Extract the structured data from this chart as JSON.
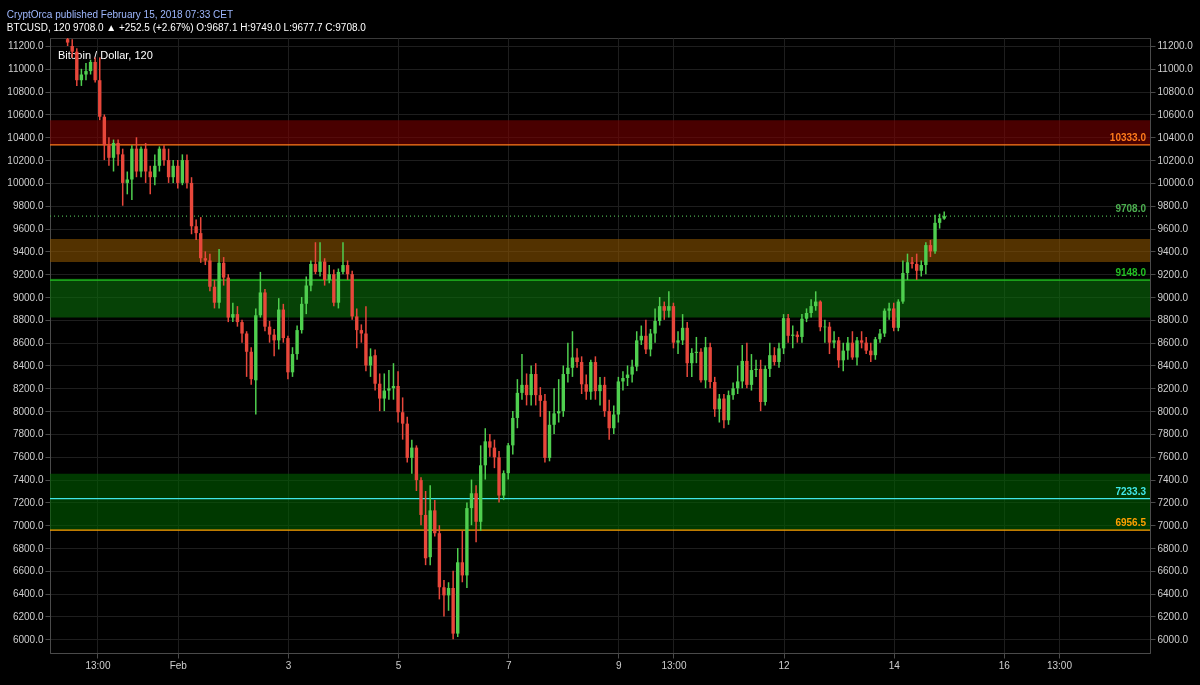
{
  "chart_data": {
    "type": "candlestick",
    "title": "CryptOrca published February 15, 2018 07:33 CET",
    "subtitle": "BTCUSD, 120  9708.0 ▲ +252.5 (+2.67%) O:9687.1 H:9749.0 L:9677.7 C:9708.0",
    "annotations": [
      "Bitcoin / Dollar, 120"
    ],
    "colors": [
      "#e8473b",
      "#e8473b",
      "#e8473b",
      "#4fcf4f",
      "#4fcf4f",
      "#4fcf4f",
      "#e8473b",
      "#e8473b",
      "#e8473b",
      "#e8473b",
      "#4fcf4f",
      "#e8473b",
      "#e8473b",
      "#4fcf4f",
      "#4fcf4f",
      "#e8473b",
      "#4fcf4f",
      "#e8473b",
      "#e8473b",
      "#4fcf4f",
      "#4fcf4f",
      "#e8473b",
      "#e8473b",
      "#4fcf4f",
      "#e8473b",
      "#4fcf4f",
      "#e8473b",
      "#e8473b",
      "#e8473b",
      "#e8473b",
      "#e8473b",
      "#e8473b",
      "#e8473b",
      "#4fcf4f",
      "#e8473b",
      "#e8473b",
      "#4fcf4f",
      "#e8473b",
      "#e8473b",
      "#e8473b",
      "#e8473b",
      "#4fcf4f",
      "#4fcf4f",
      "#e8473b",
      "#e8473b",
      "#e8473b",
      "#4fcf4f",
      "#e8473b",
      "#e8473b",
      "#4fcf4f",
      "#4fcf4f",
      "#4fcf4f",
      "#4fcf4f",
      "#4fcf4f",
      "#e8473b",
      "#4fcf4f",
      "#e8473b",
      "#4fcf4f",
      "#e8473b",
      "#4fcf4f",
      "#4fcf4f",
      "#e8473b",
      "#e8473b",
      "#e8473b",
      "#e8473b",
      "#e8473b",
      "#4fcf4f",
      "#e8473b",
      "#e8473b",
      "#4fcf4f",
      "#4fcf4f",
      "#4fcf4f",
      "#e8473b",
      "#e8473b",
      "#e8473b",
      "#4fcf4f",
      "#e8473b",
      "#e8473b",
      "#e8473b",
      "#4fcf4f",
      "#e8473b",
      "#e8473b",
      "#e8473b",
      "#4fcf4f",
      "#e8473b",
      "#4fcf4f",
      "#e8473b",
      "#4fcf4f",
      "#4fcf4f",
      "#e8473b",
      "#4fcf4f",
      "#4fcf4f",
      "#e8473b",
      "#e8473b",
      "#e8473b",
      "#4fcf4f",
      "#4fcf4f",
      "#4fcf4f",
      "#4fcf4f",
      "#4fcf4f",
      "#e8473b",
      "#4fcf4f",
      "#e8473b",
      "#e8473b",
      "#e8473b",
      "#4fcf4f",
      "#4fcf4f",
      "#4fcf4f",
      "#4fcf4f",
      "#4fcf4f",
      "#4fcf4f",
      "#e8473b",
      "#e8473b",
      "#e8473b",
      "#4fcf4f",
      "#e8473b",
      "#4fcf4f",
      "#e8473b",
      "#e8473b",
      "#4fcf4f",
      "#4fcf4f",
      "#4fcf4f",
      "#4fcf4f",
      "#4fcf4f",
      "#4fcf4f",
      "#4fcf4f",
      "#e8473b",
      "#4fcf4f",
      "#4fcf4f",
      "#4fcf4f",
      "#e8473b",
      "#4fcf4f",
      "#e8473b",
      "#4fcf4f",
      "#4fcf4f",
      "#e8473b",
      "#4fcf4f",
      "#4fcf4f",
      "#e8473b",
      "#4fcf4f",
      "#e8473b",
      "#e8473b",
      "#4fcf4f",
      "#e8473b",
      "#4fcf4f",
      "#4fcf4f",
      "#4fcf4f",
      "#4fcf4f",
      "#e8473b",
      "#4fcf4f",
      "#4fcf4f",
      "#e8473b",
      "#4fcf4f",
      "#4fcf4f",
      "#e8473b",
      "#4fcf4f",
      "#4fcf4f",
      "#e8473b",
      "#4fcf4f",
      "#e8473b",
      "#4fcf4f",
      "#4fcf4f",
      "#4fcf4f",
      "#4fcf4f",
      "#e8473b",
      "#4fcf4f",
      "#e8473b",
      "#4fcf4f",
      "#e8473b",
      "#4fcf4f",
      "#4fcf4f",
      "#e8473b",
      "#4fcf4f",
      "#e8473b",
      "#e8473b",
      "#e8473b",
      "#4fcf4f",
      "#4fcf4f",
      "#4fcf4f",
      "#4fcf4f",
      "#e8473b",
      "#4fcf4f",
      "#4fcf4f",
      "#4fcf4f",
      "#e8473b",
      "#e8473b",
      "#4fcf4f",
      "#4fcf4f",
      "#e8473b",
      "#4fcf4f",
      "#4fcf4f",
      "#4fcf4f"
    ],
    "x": [
      "2018-01-30T00:00",
      "2018-01-30T02:00",
      "2018-01-30T04:00",
      "2018-01-30T06:00",
      "2018-01-30T08:00",
      "2018-01-30T10:00",
      "2018-01-30T12:00",
      "2018-01-30T14:00",
      "2018-01-30T16:00",
      "2018-01-30T18:00",
      "2018-01-30T20:00",
      "2018-01-30T22:00",
      "2018-01-31T00:00",
      "2018-01-31T02:00",
      "2018-01-31T04:00",
      "2018-01-31T06:00",
      "2018-01-31T08:00",
      "2018-01-31T10:00",
      "2018-01-31T12:00",
      "2018-01-31T14:00",
      "2018-01-31T16:00",
      "2018-01-31T18:00",
      "2018-01-31T20:00",
      "2018-01-31T22:00",
      "2018-02-01T00:00",
      "2018-02-01T02:00",
      "2018-02-01T04:00",
      "2018-02-01T06:00",
      "2018-02-01T08:00",
      "2018-02-01T10:00",
      "2018-02-01T12:00",
      "2018-02-01T14:00",
      "2018-02-01T16:00",
      "2018-02-01T18:00",
      "2018-02-01T20:00",
      "2018-02-01T22:00",
      "2018-02-02T00:00",
      "2018-02-02T02:00",
      "2018-02-02T04:00",
      "2018-02-02T06:00",
      "2018-02-02T08:00",
      "2018-02-02T10:00",
      "2018-02-02T12:00",
      "2018-02-02T14:00",
      "2018-02-02T16:00",
      "2018-02-02T18:00",
      "2018-02-02T20:00",
      "2018-02-02T22:00",
      "2018-02-03T00:00",
      "2018-02-03T02:00",
      "2018-02-03T04:00",
      "2018-02-03T06:00",
      "2018-02-03T08:00",
      "2018-02-03T10:00",
      "2018-02-03T12:00",
      "2018-02-03T14:00",
      "2018-02-03T16:00",
      "2018-02-03T18:00",
      "2018-02-03T20:00",
      "2018-02-03T22:00",
      "2018-02-04T00:00",
      "2018-02-04T02:00",
      "2018-02-04T04:00",
      "2018-02-04T06:00",
      "2018-02-04T08:00",
      "2018-02-04T10:00",
      "2018-02-04T12:00",
      "2018-02-04T14:00",
      "2018-02-04T16:00",
      "2018-02-04T18:00",
      "2018-02-04T20:00",
      "2018-02-04T22:00",
      "2018-02-05T00:00",
      "2018-02-05T02:00",
      "2018-02-05T04:00",
      "2018-02-05T06:00",
      "2018-02-05T08:00",
      "2018-02-05T10:00",
      "2018-02-05T12:00",
      "2018-02-05T14:00",
      "2018-02-05T16:00",
      "2018-02-05T18:00",
      "2018-02-05T20:00",
      "2018-02-05T22:00",
      "2018-02-06T00:00",
      "2018-02-06T02:00",
      "2018-02-06T04:00",
      "2018-02-06T06:00",
      "2018-02-06T08:00",
      "2018-02-06T10:00",
      "2018-02-06T12:00",
      "2018-02-06T14:00",
      "2018-02-06T16:00",
      "2018-02-06T18:00",
      "2018-02-06T20:00",
      "2018-02-06T22:00",
      "2018-02-07T00:00",
      "2018-02-07T02:00",
      "2018-02-07T04:00",
      "2018-02-07T06:00",
      "2018-02-07T08:00",
      "2018-02-07T10:00",
      "2018-02-07T12:00",
      "2018-02-07T14:00",
      "2018-02-07T16:00",
      "2018-02-07T18:00",
      "2018-02-07T20:00",
      "2018-02-07T22:00",
      "2018-02-08T00:00",
      "2018-02-08T02:00",
      "2018-02-08T04:00",
      "2018-02-08T06:00",
      "2018-02-08T08:00",
      "2018-02-08T10:00",
      "2018-02-08T12:00",
      "2018-02-08T14:00",
      "2018-02-08T16:00",
      "2018-02-08T18:00",
      "2018-02-08T20:00",
      "2018-02-08T22:00",
      "2018-02-09T00:00",
      "2018-02-09T02:00",
      "2018-02-09T04:00",
      "2018-02-09T06:00",
      "2018-02-09T08:00",
      "2018-02-09T10:00",
      "2018-02-09T12:00",
      "2018-02-09T14:00",
      "2018-02-09T16:00",
      "2018-02-09T18:00",
      "2018-02-09T20:00",
      "2018-02-09T22:00",
      "2018-02-10T00:00",
      "2018-02-10T02:00",
      "2018-02-10T04:00",
      "2018-02-10T06:00",
      "2018-02-10T08:00",
      "2018-02-10T10:00",
      "2018-02-10T12:00",
      "2018-02-10T14:00",
      "2018-02-10T16:00",
      "2018-02-10T18:00",
      "2018-02-10T20:00",
      "2018-02-10T22:00",
      "2018-02-11T00:00",
      "2018-02-11T02:00",
      "2018-02-11T04:00",
      "2018-02-11T06:00",
      "2018-02-11T08:00",
      "2018-02-11T10:00",
      "2018-02-11T12:00",
      "2018-02-11T14:00",
      "2018-02-11T16:00",
      "2018-02-11T18:00",
      "2018-02-11T20:00",
      "2018-02-11T22:00",
      "2018-02-12T00:00",
      "2018-02-12T02:00",
      "2018-02-12T04:00",
      "2018-02-12T06:00",
      "2018-02-12T08:00",
      "2018-02-12T10:00",
      "2018-02-12T12:00",
      "2018-02-12T14:00",
      "2018-02-12T16:00",
      "2018-02-12T18:00",
      "2018-02-12T20:00",
      "2018-02-12T22:00",
      "2018-02-13T00:00",
      "2018-02-13T02:00",
      "2018-02-13T04:00",
      "2018-02-13T06:00",
      "2018-02-13T08:00",
      "2018-02-13T10:00",
      "2018-02-13T12:00",
      "2018-02-13T14:00",
      "2018-02-13T16:00",
      "2018-02-13T18:00",
      "2018-02-13T20:00",
      "2018-02-13T22:00",
      "2018-02-14T00:00",
      "2018-02-14T02:00",
      "2018-02-14T04:00",
      "2018-02-14T06:00",
      "2018-02-14T08:00",
      "2018-02-14T10:00",
      "2018-02-14T12:00",
      "2018-02-14T14:00",
      "2018-02-14T16:00",
      "2018-02-14T18:00",
      "2018-02-14T20:00",
      "2018-02-14T22:00"
    ],
    "ohlc": [
      [
        11260,
        11270,
        11200,
        11230
      ],
      [
        11200,
        11260,
        11100,
        11150
      ],
      [
        11150,
        11180,
        10850,
        10900
      ],
      [
        10900,
        11000,
        10850,
        10950
      ],
      [
        10950,
        11050,
        10900,
        10980
      ],
      [
        10980,
        11080,
        10950,
        11060
      ],
      [
        11060,
        11100,
        10880,
        10900
      ],
      [
        10900,
        11100,
        10550,
        10580
      ],
      [
        10580,
        10600,
        10200,
        10330
      ],
      [
        10330,
        10400,
        10150,
        10220
      ],
      [
        10220,
        10380,
        10100,
        10350
      ],
      [
        10350,
        10380,
        10150,
        10250
      ],
      [
        10250,
        10300,
        9800,
        10000
      ],
      [
        10000,
        10100,
        9900,
        10030
      ],
      [
        10030,
        10330,
        9850,
        10300
      ],
      [
        10300,
        10400,
        10050,
        10100
      ],
      [
        10100,
        10320,
        10050,
        10300
      ],
      [
        10300,
        10350,
        10000,
        10100
      ],
      [
        10100,
        10150,
        9900,
        10050
      ],
      [
        10050,
        10250,
        9980,
        10150
      ],
      [
        10150,
        10320,
        10100,
        10300
      ],
      [
        10300,
        10330,
        10150,
        10200
      ],
      [
        10200,
        10300,
        10000,
        10050
      ],
      [
        10050,
        10200,
        10000,
        10150
      ],
      [
        10150,
        10200,
        9950,
        10000
      ],
      [
        10000,
        10250,
        9980,
        10200
      ],
      [
        10200,
        10250,
        9950,
        10000
      ],
      [
        10000,
        10050,
        9550,
        9620
      ],
      [
        9620,
        9680,
        9500,
        9560
      ],
      [
        9560,
        9700,
        9300,
        9340
      ],
      [
        9340,
        9400,
        9280,
        9320
      ],
      [
        9320,
        9380,
        9050,
        9090
      ],
      [
        9090,
        9150,
        8900,
        8950
      ],
      [
        8950,
        9420,
        8900,
        9300
      ],
      [
        9300,
        9350,
        9100,
        9170
      ],
      [
        9170,
        9200,
        8780,
        8820
      ],
      [
        8820,
        8950,
        8780,
        8850
      ],
      [
        8850,
        8920,
        8740,
        8780
      ],
      [
        8780,
        8800,
        8600,
        8680
      ],
      [
        8680,
        8700,
        8300,
        8520
      ],
      [
        8520,
        8560,
        8230,
        8280
      ],
      [
        8270,
        8900,
        7970,
        8840
      ],
      [
        8840,
        9220,
        8820,
        9040
      ],
      [
        9040,
        9070,
        8700,
        8740
      ],
      [
        8740,
        8790,
        8600,
        8670
      ],
      [
        8670,
        8720,
        8480,
        8620
      ],
      [
        8620,
        8990,
        8540,
        8890
      ],
      [
        8890,
        8940,
        8600,
        8640
      ],
      [
        8640,
        8660,
        8280,
        8340
      ],
      [
        8340,
        8560,
        8300,
        8500
      ],
      [
        8500,
        8750,
        8450,
        8710
      ],
      [
        8710,
        9000,
        8680,
        8940
      ],
      [
        8940,
        9180,
        8850,
        9100
      ],
      [
        9100,
        9320,
        9050,
        9290
      ],
      [
        9290,
        9480,
        9200,
        9220
      ],
      [
        9220,
        9480,
        9180,
        9310
      ],
      [
        9310,
        9340,
        9100,
        9150
      ],
      [
        9150,
        9280,
        9120,
        9200
      ],
      [
        9200,
        9240,
        8920,
        8950
      ],
      [
        8950,
        9250,
        8900,
        9220
      ],
      [
        9220,
        9480,
        9200,
        9280
      ],
      [
        9280,
        9320,
        9150,
        9200
      ],
      [
        9200,
        9230,
        8800,
        8830
      ],
      [
        8830,
        8900,
        8550,
        8710
      ],
      [
        8710,
        8760,
        8600,
        8680
      ],
      [
        8680,
        8920,
        8350,
        8400
      ],
      [
        8400,
        8550,
        8300,
        8480
      ],
      [
        8490,
        8540,
        8180,
        8240
      ],
      [
        8240,
        8330,
        8000,
        8110
      ],
      [
        8110,
        8330,
        8000,
        8180
      ],
      [
        8180,
        8360,
        8100,
        8200
      ],
      [
        8200,
        8420,
        8100,
        8220
      ],
      [
        8220,
        8350,
        7900,
        7990
      ],
      [
        7990,
        8120,
        7750,
        7890
      ],
      [
        7890,
        7950,
        7550,
        7590
      ],
      [
        7590,
        7750,
        7450,
        7680
      ],
      [
        7680,
        7700,
        7300,
        7395
      ],
      [
        7395,
        7420,
        7000,
        7090
      ],
      [
        7090,
        7300,
        6650,
        6710
      ],
      [
        6720,
        7350,
        6650,
        7130
      ],
      [
        7130,
        7220,
        6900,
        6930
      ],
      [
        6930,
        7000,
        6350,
        6456
      ],
      [
        6456,
        6520,
        6200,
        6385
      ],
      [
        6385,
        6500,
        6250,
        6450
      ],
      [
        6450,
        6600,
        6000,
        6050
      ],
      [
        6050,
        6800,
        6020,
        6675
      ],
      [
        6675,
        6950,
        6500,
        6560
      ],
      [
        6560,
        7200,
        6450,
        7150
      ],
      [
        7150,
        7400,
        7000,
        7280
      ],
      [
        7280,
        7350,
        6850,
        7030
      ],
      [
        7030,
        7700,
        6950,
        7525
      ],
      [
        7525,
        7850,
        7400,
        7735
      ],
      [
        7735,
        7800,
        7600,
        7680
      ],
      [
        7680,
        7750,
        7500,
        7595
      ],
      [
        7595,
        7650,
        7200,
        7260
      ],
      [
        7260,
        7480,
        7220,
        7456
      ],
      [
        7456,
        7720,
        7400,
        7700
      ],
      [
        7700,
        8000,
        7620,
        7940
      ],
      [
        7940,
        8280,
        7850,
        8160
      ],
      [
        8160,
        8500,
        8100,
        8230
      ],
      [
        8230,
        8330,
        8050,
        8140
      ],
      [
        8140,
        8400,
        8050,
        8325
      ],
      [
        8325,
        8420,
        8050,
        8140
      ],
      [
        8140,
        8210,
        7950,
        8090
      ],
      [
        8090,
        8150,
        7550,
        7590
      ],
      [
        7590,
        8000,
        7560,
        7880
      ],
      [
        7880,
        8200,
        7800,
        7980
      ],
      [
        7980,
        8280,
        7900,
        8000
      ],
      [
        8000,
        8400,
        7950,
        8325
      ],
      [
        8325,
        8600,
        8250,
        8380
      ],
      [
        8380,
        8700,
        8300,
        8470
      ],
      [
        8470,
        8550,
        8380,
        8430
      ],
      [
        8430,
        8480,
        8150,
        8235
      ],
      [
        8235,
        8320,
        8100,
        8170
      ],
      [
        8170,
        8450,
        8100,
        8430
      ],
      [
        8430,
        8480,
        8100,
        8175
      ],
      [
        8175,
        8300,
        8050,
        8230
      ],
      [
        8230,
        8300,
        7950,
        8000
      ],
      [
        8000,
        8100,
        7750,
        7850
      ],
      [
        7850,
        8050,
        7800,
        7970
      ],
      [
        7970,
        8300,
        7900,
        8260
      ],
      [
        8260,
        8350,
        8180,
        8290
      ],
      [
        8290,
        8400,
        8220,
        8320
      ],
      [
        8320,
        8450,
        8250,
        8390
      ],
      [
        8390,
        8700,
        8350,
        8620
      ],
      [
        8620,
        8750,
        8580,
        8660
      ],
      [
        8660,
        8800,
        8500,
        8540
      ],
      [
        8540,
        8720,
        8480,
        8680
      ],
      [
        8680,
        8900,
        8600,
        8790
      ],
      [
        8790,
        9000,
        8750,
        8920
      ],
      [
        8920,
        8960,
        8800,
        8880
      ],
      [
        8880,
        9050,
        8820,
        8920
      ],
      [
        8920,
        8950,
        8550,
        8600
      ],
      [
        8600,
        8700,
        8500,
        8620
      ],
      [
        8620,
        8850,
        8580,
        8730
      ],
      [
        8730,
        8780,
        8300,
        8420
      ],
      [
        8420,
        8550,
        8300,
        8510
      ],
      [
        8510,
        8650,
        8420,
        8520
      ],
      [
        8520,
        8550,
        8250,
        8270
      ],
      [
        8270,
        8650,
        8200,
        8560
      ],
      [
        8560,
        8600,
        8200,
        8255
      ],
      [
        8255,
        8300,
        7950,
        8016
      ],
      [
        8016,
        8150,
        7900,
        8110
      ],
      [
        8110,
        8150,
        7850,
        7920
      ],
      [
        7920,
        8180,
        7880,
        8140
      ],
      [
        8140,
        8250,
        8100,
        8200
      ],
      [
        8200,
        8400,
        8150,
        8260
      ],
      [
        8260,
        8580,
        8200,
        8440
      ],
      [
        8440,
        8600,
        8200,
        8230
      ],
      [
        8230,
        8500,
        8180,
        8360
      ],
      [
        8360,
        8450,
        8300,
        8370
      ],
      [
        8370,
        8450,
        8000,
        8080
      ],
      [
        8080,
        8400,
        8050,
        8370
      ],
      [
        8370,
        8600,
        8300,
        8490
      ],
      [
        8490,
        8560,
        8400,
        8430
      ],
      [
        8430,
        8600,
        8380,
        8550
      ],
      [
        8550,
        8850,
        8500,
        8815
      ],
      [
        8815,
        8850,
        8600,
        8660
      ],
      [
        8660,
        8750,
        8550,
        8670
      ],
      [
        8670,
        8700,
        8600,
        8650
      ],
      [
        8650,
        8850,
        8600,
        8810
      ],
      [
        8810,
        8900,
        8780,
        8860
      ],
      [
        8860,
        8980,
        8820,
        8920
      ],
      [
        8920,
        9050,
        8880,
        8960
      ],
      [
        8960,
        8970,
        8700,
        8735
      ],
      [
        8735,
        8800,
        8600,
        8740
      ],
      [
        8740,
        8780,
        8500,
        8600
      ],
      [
        8600,
        8700,
        8550,
        8620
      ],
      [
        8620,
        8650,
        8380,
        8445
      ],
      [
        8445,
        8600,
        8350,
        8530
      ],
      [
        8530,
        8650,
        8450,
        8600
      ],
      [
        8600,
        8700,
        8450,
        8470
      ],
      [
        8470,
        8650,
        8400,
        8620
      ],
      [
        8620,
        8700,
        8550,
        8600
      ],
      [
        8600,
        8650,
        8500,
        8530
      ],
      [
        8530,
        8600,
        8430,
        8490
      ],
      [
        8490,
        8650,
        8450,
        8630
      ],
      [
        8630,
        8720,
        8600,
        8680
      ],
      [
        8680,
        8900,
        8650,
        8880
      ],
      [
        8880,
        8950,
        8800,
        8900
      ],
      [
        8900,
        8950,
        8700,
        8730
      ],
      [
        8730,
        8980,
        8700,
        8960
      ],
      [
        8960,
        9320,
        8940,
        9210
      ],
      [
        9210,
        9380,
        9150,
        9305
      ],
      [
        9305,
        9350,
        9250,
        9290
      ],
      [
        9290,
        9380,
        9150,
        9230
      ],
      [
        9230,
        9320,
        9180,
        9280
      ],
      [
        9280,
        9480,
        9200,
        9455
      ],
      [
        9455,
        9500,
        9350,
        9400
      ],
      [
        9400,
        9720,
        9380,
        9650
      ],
      [
        9650,
        9730,
        9600,
        9690
      ],
      [
        9687.1,
        9749.0,
        9677.7,
        9708.0
      ]
    ],
    "xlim": [
      "2018-01-29T18:30",
      "2018-02-18T13:30"
    ],
    "xticks": [
      {
        "value": "2018-01-30T13:00",
        "label": "13:00"
      },
      {
        "value": "2018-02-01T00:00",
        "label": "Feb"
      },
      {
        "value": "2018-02-03T00:00",
        "label": "3"
      },
      {
        "value": "2018-02-05T00:00",
        "label": "5"
      },
      {
        "value": "2018-02-07T00:00",
        "label": "7"
      },
      {
        "value": "2018-02-09T00:00",
        "label": "9"
      },
      {
        "value": "2018-02-10T00:00",
        "label": "13:00"
      },
      {
        "value": "2018-02-12T00:00",
        "label": "12"
      },
      {
        "value": "2018-02-14T00:00",
        "label": "14"
      },
      {
        "value": "2018-02-16T00:00",
        "label": "16"
      },
      {
        "value": "2018-02-17T00:00",
        "label": "13:00"
      }
    ],
    "ylim": [
      5880,
      11270
    ],
    "yticks": [
      {
        "value": 6000,
        "label": "6000.0"
      },
      {
        "value": 6200,
        "label": "6200.0"
      },
      {
        "value": 6400,
        "label": "6400.0"
      },
      {
        "value": 6600,
        "label": "6600.0"
      },
      {
        "value": 6800,
        "label": "6800.0"
      },
      {
        "value": 7000,
        "label": "7000.0"
      },
      {
        "value": 7200,
        "label": "7200.0"
      },
      {
        "value": 7400,
        "label": "7400.0"
      },
      {
        "value": 7600,
        "label": "7600.0"
      },
      {
        "value": 7800,
        "label": "7800.0"
      },
      {
        "value": 8000,
        "label": "8000.0"
      },
      {
        "value": 8200,
        "label": "8200.0"
      },
      {
        "value": 8400,
        "label": "8400.0"
      },
      {
        "value": 8600,
        "label": "8600.0"
      },
      {
        "value": 8800,
        "label": "8800.0"
      },
      {
        "value": 9000,
        "label": "9000.0"
      },
      {
        "value": 9200,
        "label": "9200.0"
      },
      {
        "value": 9400,
        "label": "9400.0"
      },
      {
        "value": 9600,
        "label": "9600.0"
      },
      {
        "value": 9800,
        "label": "9800.0"
      },
      {
        "value": 10000,
        "label": "10000.0"
      },
      {
        "value": 10200,
        "label": "10200.0"
      },
      {
        "value": 10400,
        "label": "10400.0"
      },
      {
        "value": 10600,
        "label": "10600.0"
      },
      {
        "value": 10800,
        "label": "10800.0"
      },
      {
        "value": 11000,
        "label": "11000.0"
      },
      {
        "value": 11200,
        "label": "11200.0"
      }
    ],
    "y2lim": [
      5880,
      11270
    ],
    "y2ticks": [
      {
        "value": 6000,
        "label": "6000.0"
      },
      {
        "value": 6200,
        "label": "6200.0"
      },
      {
        "value": 6400,
        "label": "6400.0"
      },
      {
        "value": 6600,
        "label": "6600.0"
      },
      {
        "value": 6800,
        "label": "6800.0"
      },
      {
        "value": 7000,
        "label": "7000.0"
      },
      {
        "value": 7200,
        "label": "7200.0"
      },
      {
        "value": 7400,
        "label": "7400.0"
      },
      {
        "value": 7600,
        "label": "7600.0"
      },
      {
        "value": 7800,
        "label": "7800.0"
      },
      {
        "value": 8000,
        "label": "8000.0"
      },
      {
        "value": 8200,
        "label": "8200.0"
      },
      {
        "value": 8400,
        "label": "8400.0"
      },
      {
        "value": 8600,
        "label": "8600.0"
      },
      {
        "value": 8800,
        "label": "8800.0"
      },
      {
        "value": 9000,
        "label": "9000.0"
      },
      {
        "value": 9200,
        "label": "9200.0"
      },
      {
        "value": 9400,
        "label": "9400.0"
      },
      {
        "value": 9600,
        "label": "9600.0"
      },
      {
        "value": 9800,
        "label": "9800.0"
      },
      {
        "value": 10000,
        "label": "10000.0"
      },
      {
        "value": 10200,
        "label": "10200.0"
      },
      {
        "value": 10400,
        "label": "10400.0"
      },
      {
        "value": 10600,
        "label": "10600.0"
      },
      {
        "value": 10800,
        "label": "10800.0"
      },
      {
        "value": 11000,
        "label": "11000.0"
      },
      {
        "value": 11200,
        "label": "11200.0"
      }
    ],
    "bands": [
      {
        "axis": "y",
        "from": 10333,
        "to": 10550,
        "color": "#7a0000"
      },
      {
        "axis": "y",
        "from": 9306,
        "to": 9508,
        "color": "#8a5300"
      },
      {
        "axis": "y",
        "from": 8820,
        "to": 9160,
        "color": "#0a6e0a"
      },
      {
        "axis": "y",
        "from": 6956.5,
        "to": 7450,
        "color": "#005f00"
      }
    ],
    "ref_lines": [
      {
        "axis": "y",
        "value": 10333.0,
        "label": "10333.0",
        "color": "#ff7a1a",
        "line_style": "solid"
      },
      {
        "axis": "y",
        "value": 9708.0,
        "label": "9708.0",
        "color": "#4caf50",
        "line_style": "dotted"
      },
      {
        "axis": "y",
        "value": 9148.0,
        "label": "9148.0",
        "color": "#22c022",
        "line_style": "solid"
      },
      {
        "axis": "y",
        "value": 7233.3,
        "label": "7233.3",
        "color": "#40e8e8",
        "line_style": "solid"
      },
      {
        "axis": "y",
        "value": 6956.5,
        "label": "6956.5",
        "color": "#ffa000",
        "line_style": "solid"
      }
    ],
    "grid": true
  }
}
